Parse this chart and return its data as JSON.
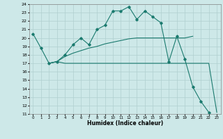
{
  "xlabel": "Humidex (Indice chaleur)",
  "bg_color": "#cde8e8",
  "line_color": "#1a7a6e",
  "grid_color": "#b0cfcf",
  "xlim": [
    -0.5,
    23.5
  ],
  "ylim": [
    11,
    24
  ],
  "yticks": [
    11,
    12,
    13,
    14,
    15,
    16,
    17,
    18,
    19,
    20,
    21,
    22,
    23,
    24
  ],
  "xticks": [
    0,
    1,
    2,
    3,
    4,
    5,
    6,
    7,
    8,
    9,
    10,
    11,
    12,
    13,
    14,
    15,
    16,
    17,
    18,
    19,
    20,
    21,
    22,
    23
  ],
  "series0": {
    "x": [
      0,
      1,
      2,
      3,
      4,
      5,
      6,
      7,
      8,
      9,
      10,
      11,
      12,
      13,
      14,
      15,
      16,
      17,
      18,
      19,
      20,
      21,
      22
    ],
    "y": [
      20.5,
      18.8,
      17.0,
      17.2,
      18.0,
      19.2,
      20.0,
      19.2,
      21.0,
      21.5,
      23.2,
      23.2,
      23.7,
      22.2,
      23.2,
      22.5,
      21.8,
      17.2,
      20.2,
      17.5,
      14.2,
      12.5,
      11.2
    ]
  },
  "series1": {
    "x": [
      2,
      3,
      4,
      5,
      6,
      7,
      8,
      9,
      10,
      11,
      12,
      13,
      14,
      15,
      16,
      17,
      18,
      19,
      20
    ],
    "y": [
      17.0,
      17.2,
      17.8,
      18.2,
      18.5,
      18.8,
      19.0,
      19.3,
      19.5,
      19.7,
      19.9,
      20.0,
      20.0,
      20.0,
      20.0,
      20.0,
      20.0,
      20.0,
      20.2
    ]
  },
  "series2": {
    "x": [
      2,
      3,
      4,
      5,
      6,
      7,
      8,
      9,
      10,
      11,
      12,
      13,
      14,
      15,
      16,
      17,
      18,
      19,
      20,
      21,
      22,
      23
    ],
    "y": [
      17.0,
      17.2,
      17.0,
      17.0,
      17.0,
      17.0,
      17.0,
      17.0,
      17.0,
      17.0,
      17.0,
      17.0,
      17.0,
      17.0,
      17.0,
      17.0,
      17.0,
      17.0,
      17.0,
      17.0,
      17.0,
      11.2
    ]
  }
}
